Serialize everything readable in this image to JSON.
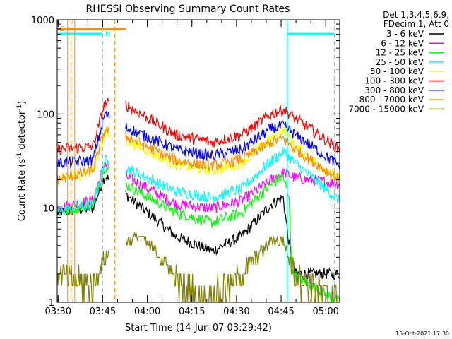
{
  "chart_data": {
    "type": "line",
    "title": "RHESSI Observing Summary Count Rates",
    "xlabel": "Start Time (14-Jun-07 03:29:42)",
    "ylabel_prefix": "Count Rate (s",
    "ylabel_sup1": "-1",
    "ylabel_mid": " detector",
    "ylabel_sup2": "-1",
    "ylabel_suffix": ")",
    "y_scale": "log",
    "ylim": [
      1,
      1000
    ],
    "xlim_minutes": [
      0,
      95
    ],
    "x_ticks": [
      {
        "minute": 0.3,
        "label": "03:30"
      },
      {
        "minute": 15.3,
        "label": "03:45"
      },
      {
        "minute": 30.3,
        "label": "04:00"
      },
      {
        "minute": 45.3,
        "label": "04:15"
      },
      {
        "minute": 60.3,
        "label": "04:30"
      },
      {
        "minute": 75.3,
        "label": "04:45"
      },
      {
        "minute": 90.3,
        "label": "05:00"
      }
    ],
    "y_ticks": [
      {
        "value": 1,
        "label": "1"
      },
      {
        "value": 10,
        "label": "10"
      },
      {
        "value": 100,
        "label": "100"
      },
      {
        "value": 1000,
        "label": "1000"
      }
    ],
    "legend_title": [
      "Det 1,3,4,5,6,9,",
      "FDecim 1, Att 0"
    ],
    "legend_position": "right",
    "series": [
      {
        "name": "3 - 6 keV",
        "color": "#000000"
      },
      {
        "name": "6 - 12 keV",
        "color": "#ff00ff"
      },
      {
        "name": "12 - 25 keV",
        "color": "#00ff00"
      },
      {
        "name": "25 - 50 keV",
        "color": "#00ffff"
      },
      {
        "name": "50 - 100 keV",
        "color": "#ffff00"
      },
      {
        "name": "100 - 300 keV",
        "color": "#ff0000"
      },
      {
        "name": "300 - 800 keV",
        "color": "#0000ff"
      },
      {
        "name": "800 - 7000 keV",
        "color": "#ff8c00"
      },
      {
        "name": "7000 - 15000 keV",
        "color": "#808000"
      }
    ],
    "series_curves": {
      "3 - 6 keV": [
        [
          0,
          9
        ],
        [
          12,
          10
        ],
        [
          16,
          22
        ],
        [
          23,
          14
        ],
        [
          40,
          5
        ],
        [
          52,
          3.5
        ],
        [
          62,
          5
        ],
        [
          72,
          11
        ],
        [
          76,
          13
        ],
        [
          78,
          4
        ],
        [
          80,
          2
        ],
        [
          95,
          2
        ]
      ],
      "6 - 12 keV": [
        [
          0,
          10
        ],
        [
          12,
          12
        ],
        [
          16,
          30
        ],
        [
          23,
          22
        ],
        [
          40,
          11
        ],
        [
          52,
          10
        ],
        [
          62,
          12
        ],
        [
          72,
          20
        ],
        [
          76,
          24
        ],
        [
          80,
          21
        ],
        [
          95,
          18
        ]
      ],
      "12 - 25 keV": [
        [
          0,
          9
        ],
        [
          12,
          11
        ],
        [
          16,
          28
        ],
        [
          23,
          18
        ],
        [
          40,
          9
        ],
        [
          52,
          7
        ],
        [
          62,
          9
        ],
        [
          72,
          18
        ],
        [
          76,
          22
        ],
        [
          78,
          12
        ],
        [
          79,
          2
        ],
        [
          95,
          1
        ]
      ],
      "25 - 50 keV": [
        [
          0,
          9.5
        ],
        [
          12,
          11
        ],
        [
          16,
          32
        ],
        [
          23,
          27
        ],
        [
          40,
          15
        ],
        [
          52,
          13
        ],
        [
          62,
          16
        ],
        [
          70,
          28
        ],
        [
          76,
          40
        ],
        [
          80,
          30
        ],
        [
          95,
          12
        ]
      ],
      "50 - 100 keV": [
        [
          0,
          20
        ],
        [
          12,
          25
        ],
        [
          16,
          62
        ],
        [
          23,
          53
        ],
        [
          40,
          29
        ],
        [
          52,
          25
        ],
        [
          62,
          30
        ],
        [
          72,
          55
        ],
        [
          76,
          70
        ],
        [
          80,
          45
        ],
        [
          95,
          20
        ]
      ],
      "100 - 300 keV": [
        [
          0,
          42
        ],
        [
          12,
          45
        ],
        [
          16,
          130
        ],
        [
          23,
          125
        ],
        [
          40,
          60
        ],
        [
          52,
          50
        ],
        [
          62,
          60
        ],
        [
          72,
          100
        ],
        [
          76,
          112
        ],
        [
          80,
          90
        ],
        [
          95,
          42
        ]
      ],
      "300 - 800 keV": [
        [
          0,
          30
        ],
        [
          12,
          32
        ],
        [
          16,
          100
        ],
        [
          23,
          72
        ],
        [
          40,
          42
        ],
        [
          52,
          36
        ],
        [
          62,
          42
        ],
        [
          72,
          70
        ],
        [
          76,
          75
        ],
        [
          80,
          60
        ],
        [
          95,
          28
        ]
      ],
      "800 - 7000 keV": [
        [
          0,
          20
        ],
        [
          12,
          25
        ],
        [
          16,
          68
        ],
        [
          23,
          58
        ],
        [
          40,
          32
        ],
        [
          52,
          28
        ],
        [
          62,
          33
        ],
        [
          72,
          50
        ],
        [
          76,
          55
        ],
        [
          80,
          42
        ],
        [
          95,
          20
        ]
      ],
      "7000 - 15000 keV": [
        [
          0,
          2
        ],
        [
          12,
          1.5
        ],
        [
          16,
          3
        ],
        [
          23,
          4.5
        ],
        [
          28,
          5
        ],
        [
          35,
          3
        ],
        [
          42,
          1.5
        ],
        [
          50,
          1
        ],
        [
          62,
          2
        ],
        [
          72,
          4.5
        ],
        [
          76,
          4.5
        ],
        [
          80,
          2
        ],
        [
          95,
          1
        ]
      ]
    },
    "data_gap_minutes": [
      17.5,
      23
    ],
    "flag_markers": [
      {
        "label": "S",
        "color": "#ff8c00",
        "start_minute": 0,
        "end_minute": 23
      },
      {
        "label": "N",
        "color": "#00ffff",
        "start_minute": 0,
        "end_minute": 15.3
      }
    ],
    "flag_bars": [
      {
        "color": "#00ffff",
        "start_minute": 77.3,
        "end_minute": 93.2
      }
    ],
    "vertical_lines": [
      {
        "minute": 3.5,
        "color": "#ff8c00",
        "style": "solid"
      },
      {
        "minute": 4.6,
        "color": "#ff8c00",
        "style": "dashed"
      },
      {
        "minute": 5.9,
        "color": "#ff8c00",
        "style": "solid"
      },
      {
        "minute": 15.3,
        "color": "#00ffff",
        "style": "dashed"
      },
      {
        "minute": 19.4,
        "color": "#ff8c00",
        "style": "dashed"
      },
      {
        "minute": 77.3,
        "color": "#00ffff",
        "style": "solid"
      },
      {
        "minute": 93.2,
        "color": "#00ffff",
        "style": "dashed"
      }
    ],
    "footer_timestamp": "15-Oct-2021 17:30"
  }
}
